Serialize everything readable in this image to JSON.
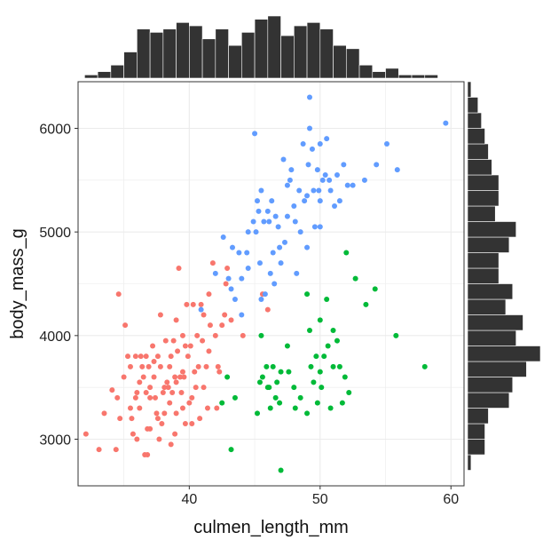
{
  "chart_data": {
    "type": "scatter",
    "xlabel": "culmen_length_mm",
    "ylabel": "body_mass_g",
    "xlim": [
      31.5,
      61.0
    ],
    "ylim": [
      2550,
      6450
    ],
    "x_ticks": [
      40,
      50,
      60
    ],
    "y_ticks": [
      3000,
      4000,
      5000,
      6000
    ],
    "grid": true,
    "legend": "none",
    "colors": {
      "group_a": "#F8766D",
      "group_b": "#00BA38",
      "group_c": "#619CFF",
      "histogram": "#333333"
    },
    "series": [
      {
        "color": "#F8766D",
        "points": [
          [
            32.1,
            3050
          ],
          [
            33.1,
            2900
          ],
          [
            33.5,
            3250
          ],
          [
            34.6,
            4400
          ],
          [
            34.1,
            3475
          ],
          [
            34.5,
            3400
          ],
          [
            34.4,
            2900
          ],
          [
            34.7,
            3200
          ],
          [
            35.0,
            3600
          ],
          [
            35.1,
            4100
          ],
          [
            35.3,
            3800
          ],
          [
            35.5,
            3300
          ],
          [
            35.5,
            3700
          ],
          [
            35.6,
            3200
          ],
          [
            35.7,
            3050
          ],
          [
            35.9,
            3800
          ],
          [
            36.0,
            3450
          ],
          [
            36.0,
            3000
          ],
          [
            36.2,
            3300
          ],
          [
            36.3,
            3800
          ],
          [
            36.4,
            3700
          ],
          [
            36.5,
            3600
          ],
          [
            36.6,
            2850
          ],
          [
            36.7,
            3800
          ],
          [
            36.7,
            3450
          ],
          [
            36.8,
            3100
          ],
          [
            36.8,
            2850
          ],
          [
            36.9,
            3700
          ],
          [
            37.0,
            3500
          ],
          [
            37.0,
            3100
          ],
          [
            37.2,
            3900
          ],
          [
            37.3,
            3600
          ],
          [
            37.4,
            3400
          ],
          [
            37.5,
            3250
          ],
          [
            37.6,
            3800
          ],
          [
            37.7,
            3000
          ],
          [
            37.8,
            3700
          ],
          [
            37.8,
            4200
          ],
          [
            37.9,
            3150
          ],
          [
            38.0,
            3450
          ],
          [
            38.1,
            3500
          ],
          [
            38.1,
            3250
          ],
          [
            38.2,
            3950
          ],
          [
            38.3,
            3550
          ],
          [
            38.5,
            3700
          ],
          [
            38.5,
            3350
          ],
          [
            38.6,
            3800
          ],
          [
            38.6,
            2950
          ],
          [
            38.7,
            3450
          ],
          [
            38.8,
            3950
          ],
          [
            38.9,
            3600
          ],
          [
            39.0,
            3250
          ],
          [
            39.0,
            4150
          ],
          [
            39.1,
            3850
          ],
          [
            39.2,
            4650
          ],
          [
            39.3,
            3600
          ],
          [
            39.4,
            3450
          ],
          [
            39.5,
            4000
          ],
          [
            39.5,
            3300
          ],
          [
            39.6,
            3600
          ],
          [
            39.7,
            3900
          ],
          [
            39.7,
            3150
          ],
          [
            39.8,
            4300
          ],
          [
            39.9,
            3800
          ],
          [
            40.1,
            3900
          ],
          [
            40.2,
            3400
          ],
          [
            40.3,
            4300
          ],
          [
            40.4,
            3650
          ],
          [
            40.5,
            3500
          ],
          [
            40.6,
            4000
          ],
          [
            40.7,
            3700
          ],
          [
            40.8,
            3200
          ],
          [
            40.9,
            4300
          ],
          [
            41.0,
            3950
          ],
          [
            41.1,
            4200
          ],
          [
            41.1,
            3500
          ],
          [
            41.3,
            3700
          ],
          [
            41.4,
            3300
          ],
          [
            41.5,
            4400
          ],
          [
            41.6,
            4100
          ],
          [
            41.8,
            4700
          ],
          [
            42.0,
            4000
          ],
          [
            42.1,
            3300
          ],
          [
            42.2,
            3700
          ],
          [
            42.3,
            3650
          ],
          [
            42.5,
            4100
          ],
          [
            42.7,
            4200
          ],
          [
            42.8,
            4500
          ],
          [
            42.9,
            4650
          ],
          [
            43.2,
            4150
          ],
          [
            44.1,
            4000
          ],
          [
            45.6,
            4400
          ],
          [
            46.0,
            4250
          ],
          [
            35.9,
            3400
          ],
          [
            37.0,
            3400
          ],
          [
            38.4,
            3500
          ],
          [
            39.5,
            3650
          ],
          [
            40.0,
            3350
          ],
          [
            36.2,
            3550
          ],
          [
            37.6,
            3200
          ],
          [
            38.9,
            3050
          ],
          [
            40.2,
            3150
          ],
          [
            41.5,
            3850
          ],
          [
            39.0,
            3550
          ],
          [
            37.3,
            3750
          ]
        ]
      },
      {
        "color": "#00BA38",
        "points": [
          [
            42.5,
            3350
          ],
          [
            43.2,
            2900
          ],
          [
            42.9,
            3600
          ],
          [
            43.5,
            3400
          ],
          [
            45.2,
            3250
          ],
          [
            45.4,
            3550
          ],
          [
            45.5,
            4000
          ],
          [
            45.6,
            3600
          ],
          [
            45.9,
            3700
          ],
          [
            46.1,
            3500
          ],
          [
            46.2,
            3300
          ],
          [
            46.4,
            3700
          ],
          [
            46.6,
            3400
          ],
          [
            46.7,
            3550
          ],
          [
            46.9,
            3350
          ],
          [
            47.0,
            2700
          ],
          [
            47.5,
            3900
          ],
          [
            47.6,
            3650
          ],
          [
            48.1,
            3300
          ],
          [
            48.5,
            3400
          ],
          [
            49.0,
            3250
          ],
          [
            49.2,
            4050
          ],
          [
            49.3,
            3700
          ],
          [
            49.5,
            3550
          ],
          [
            49.7,
            3800
          ],
          [
            49.8,
            3350
          ],
          [
            50.0,
            3650
          ],
          [
            50.1,
            3500
          ],
          [
            50.3,
            3800
          ],
          [
            50.5,
            4350
          ],
          [
            50.6,
            3900
          ],
          [
            50.8,
            3300
          ],
          [
            51.0,
            3700
          ],
          [
            51.3,
            3950
          ],
          [
            51.5,
            3700
          ],
          [
            51.7,
            3350
          ],
          [
            51.9,
            3600
          ],
          [
            52.0,
            4800
          ],
          [
            52.2,
            3450
          ],
          [
            52.7,
            4550
          ],
          [
            53.5,
            4300
          ],
          [
            54.2,
            4450
          ],
          [
            55.8,
            4000
          ],
          [
            58.0,
            3700
          ],
          [
            49.0,
            4400
          ],
          [
            46.0,
            3500
          ],
          [
            47.0,
            3650
          ],
          [
            48.0,
            3500
          ],
          [
            50.0,
            4150
          ],
          [
            51.0,
            4050
          ]
        ]
      },
      {
        "color": "#619CFF",
        "points": [
          [
            40.9,
            4250
          ],
          [
            42.0,
            4600
          ],
          [
            42.6,
            4950
          ],
          [
            43.2,
            4450
          ],
          [
            43.3,
            4850
          ],
          [
            43.5,
            4350
          ],
          [
            43.8,
            4800
          ],
          [
            44.0,
            4200
          ],
          [
            44.4,
            4800
          ],
          [
            44.5,
            4650
          ],
          [
            44.9,
            5100
          ],
          [
            45.1,
            5000
          ],
          [
            45.2,
            5300
          ],
          [
            45.3,
            5200
          ],
          [
            45.4,
            4700
          ],
          [
            45.5,
            5400
          ],
          [
            45.7,
            5100
          ],
          [
            45.8,
            4400
          ],
          [
            46.1,
            5100
          ],
          [
            46.2,
            4600
          ],
          [
            46.3,
            5300
          ],
          [
            46.4,
            4800
          ],
          [
            46.5,
            4500
          ],
          [
            46.6,
            5150
          ],
          [
            46.8,
            5050
          ],
          [
            46.9,
            4850
          ],
          [
            47.2,
            5700
          ],
          [
            47.3,
            4900
          ],
          [
            47.5,
            5450
          ],
          [
            47.7,
            5500
          ],
          [
            47.8,
            5600
          ],
          [
            48.1,
            5100
          ],
          [
            48.2,
            4600
          ],
          [
            48.4,
            5400
          ],
          [
            48.5,
            5000
          ],
          [
            48.7,
            5850
          ],
          [
            48.8,
            5300
          ],
          [
            49.0,
            4850
          ],
          [
            49.1,
            5650
          ],
          [
            49.2,
            6300
          ],
          [
            49.4,
            5800
          ],
          [
            49.5,
            5400
          ],
          [
            49.6,
            5050
          ],
          [
            49.8,
            5600
          ],
          [
            49.9,
            5400
          ],
          [
            50.0,
            5300
          ],
          [
            50.2,
            5500
          ],
          [
            50.4,
            5550
          ],
          [
            50.5,
            5900
          ],
          [
            50.7,
            5500
          ],
          [
            50.8,
            5400
          ],
          [
            51.1,
            5250
          ],
          [
            51.3,
            5550
          ],
          [
            51.5,
            5300
          ],
          [
            52.1,
            5450
          ],
          [
            52.5,
            5450
          ],
          [
            53.4,
            5500
          ],
          [
            54.3,
            5650
          ],
          [
            55.1,
            5850
          ],
          [
            55.9,
            5600
          ],
          [
            59.6,
            6050
          ],
          [
            45.0,
            5950
          ],
          [
            49.2,
            6000
          ],
          [
            50.0,
            5850
          ],
          [
            47.0,
            4700
          ],
          [
            44.0,
            4550
          ],
          [
            46.0,
            5200
          ],
          [
            48.0,
            5250
          ],
          [
            50.0,
            5050
          ],
          [
            45.5,
            4350
          ],
          [
            43.0,
            4550
          ],
          [
            44.5,
            5000
          ],
          [
            47.5,
            5150
          ],
          [
            49.0,
            5350
          ],
          [
            51.8,
            5650
          ]
        ]
      }
    ],
    "top_histogram": {
      "bins": [
        32.0,
        33.0,
        34.0,
        35.0,
        36.0,
        37.0,
        38.0,
        39.0,
        40.0,
        41.0,
        42.0,
        43.0,
        44.0,
        45.0,
        46.0,
        47.0,
        48.0,
        49.0,
        50.0,
        51.0,
        52.0,
        53.0,
        54.0,
        55.0,
        56.0,
        57.0,
        58.0,
        59.0
      ],
      "counts": [
        1,
        2,
        4,
        8,
        15,
        14,
        15,
        17,
        16,
        12,
        15,
        10,
        14,
        18,
        19,
        13,
        16,
        17,
        15,
        10,
        9,
        4,
        2,
        3,
        1,
        1,
        1,
        0
      ],
      "bin_width": 1.0
    },
    "right_histogram": {
      "bins": [
        2700,
        2850,
        3000,
        3150,
        3300,
        3450,
        3600,
        3750,
        3900,
        4050,
        4200,
        4350,
        4500,
        4650,
        4800,
        4950,
        5100,
        5250,
        5400,
        5550,
        5700,
        5850,
        6000,
        6150,
        6300
      ],
      "counts": [
        1,
        5,
        5,
        6,
        12,
        13,
        17,
        21,
        14,
        16,
        11,
        13,
        9,
        9,
        12,
        14,
        8,
        9,
        9,
        7,
        6,
        5,
        4,
        3,
        1
      ],
      "bin_width": 150
    }
  }
}
